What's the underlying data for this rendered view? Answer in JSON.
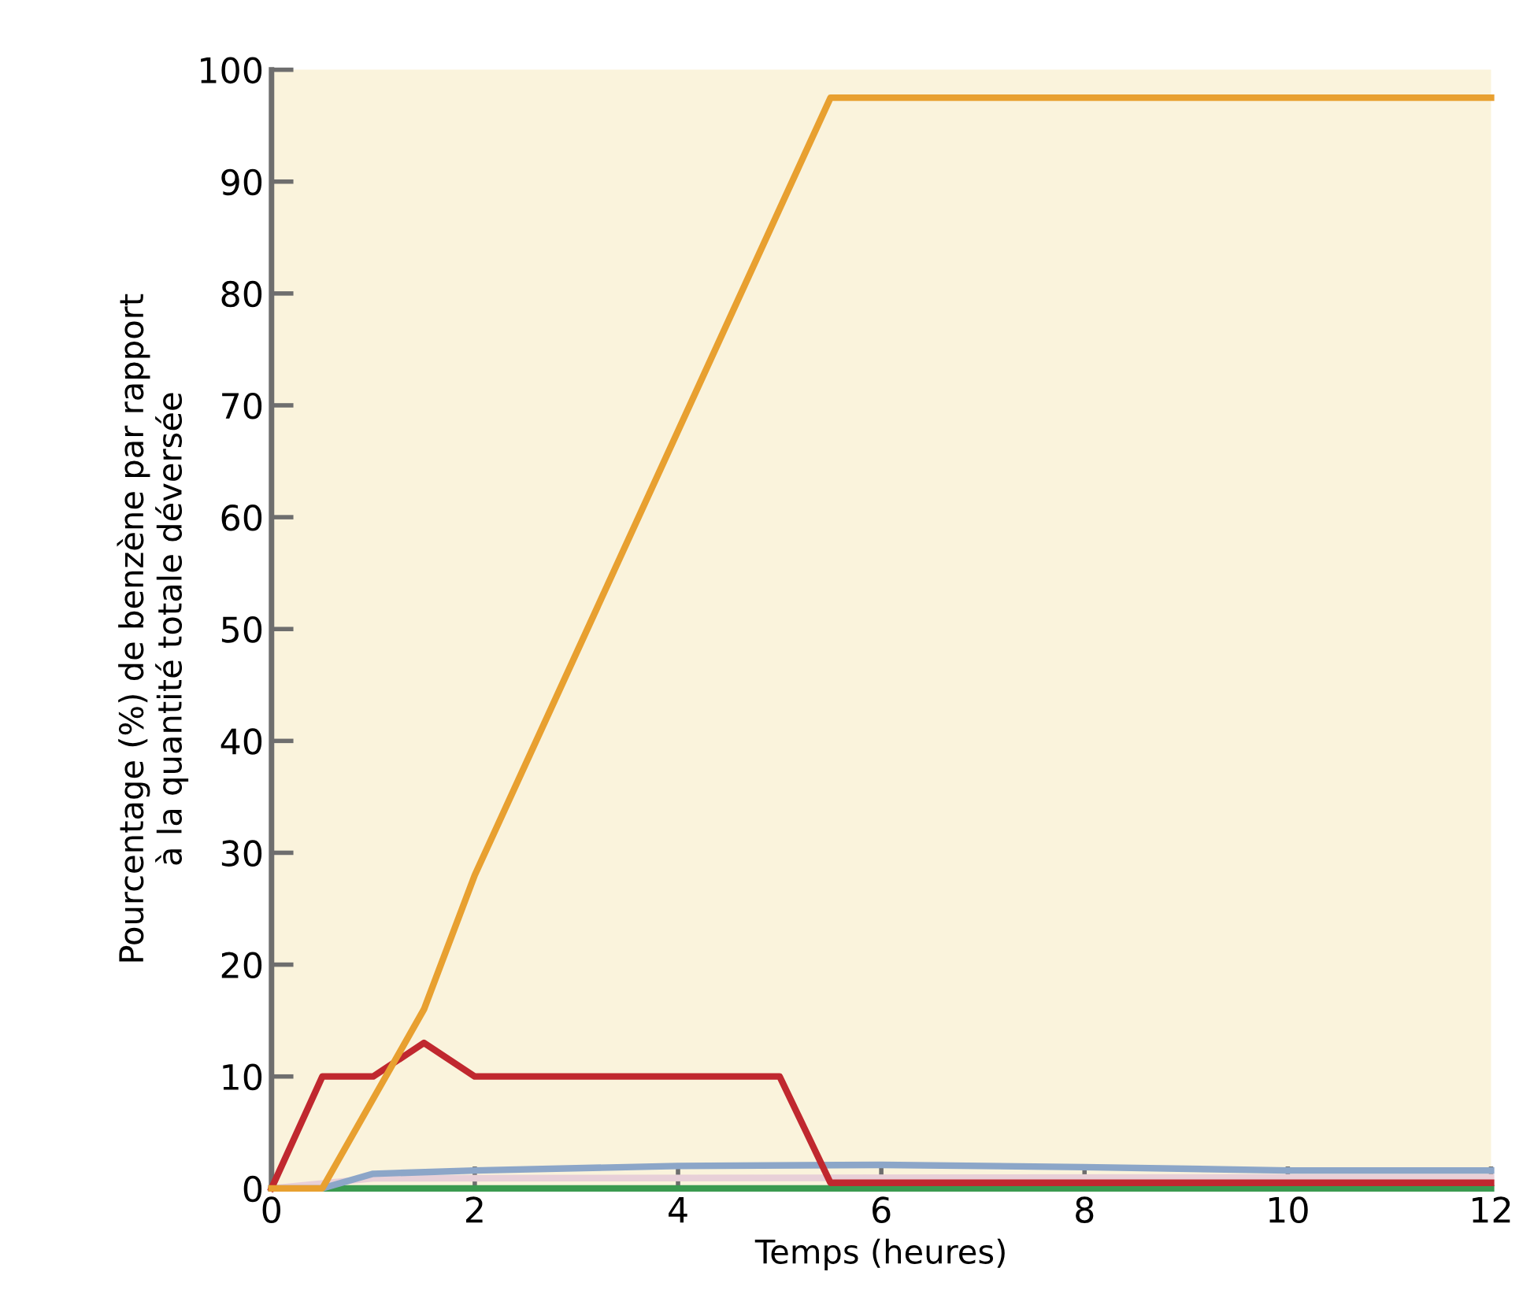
{
  "chart_data": {
    "type": "line",
    "xlabel": "Temps (heures)",
    "ylabel": "Pourcentage (%) de benzène par rapport\nà la quantité totale déversée",
    "xlim": [
      0,
      12
    ],
    "ylim": [
      0,
      100
    ],
    "xticks": [
      0,
      2,
      4,
      6,
      8,
      10,
      12
    ],
    "yticks": [
      0,
      10,
      20,
      30,
      40,
      50,
      60,
      70,
      80,
      90,
      100
    ],
    "grid": false,
    "legend": false,
    "marker": "none",
    "line_style": "solid",
    "series": [
      {
        "color": "#3a9a50",
        "x": [
          0,
          12
        ],
        "values": [
          0,
          0
        ]
      },
      {
        "color": "#e8d0d8",
        "x": [
          0,
          1,
          12
        ],
        "values": [
          0,
          0.9,
          1
        ]
      },
      {
        "color": "#8ca6c8",
        "x": [
          0,
          0.5,
          1,
          2,
          4,
          6,
          8,
          10,
          12
        ],
        "values": [
          0,
          0,
          1.3,
          1.6,
          2,
          2.1,
          1.9,
          1.6,
          1.6
        ]
      },
      {
        "color": "#c0282f",
        "x": [
          0,
          0.5,
          1,
          1.5,
          2,
          5,
          5.5,
          12
        ],
        "values": [
          0,
          10,
          10,
          13,
          10,
          10,
          0.5,
          0.5
        ]
      },
      {
        "color": "#e8a030",
        "x": [
          0,
          0.5,
          1.5,
          2,
          5.5,
          12
        ],
        "values": [
          0,
          0,
          16,
          28,
          97.5,
          97.5
        ]
      }
    ]
  }
}
